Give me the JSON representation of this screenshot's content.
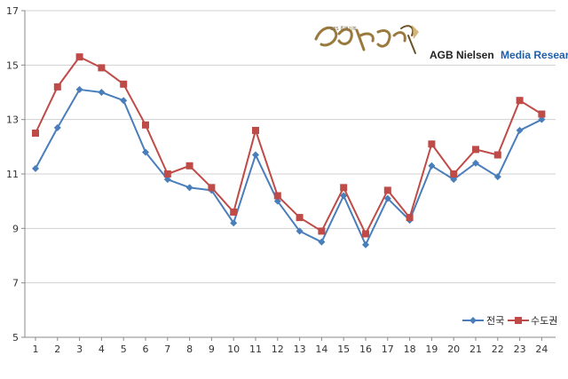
{
  "chart_data": {
    "type": "line",
    "title": "",
    "xlabel": "",
    "ylabel": "",
    "categories": [
      "1",
      "2",
      "3",
      "4",
      "5",
      "6",
      "7",
      "8",
      "9",
      "10",
      "11",
      "12",
      "13",
      "14",
      "15",
      "16",
      "17",
      "18",
      "19",
      "20",
      "21",
      "22",
      "23",
      "24"
    ],
    "ylim": [
      5,
      17
    ],
    "yticks": [
      5,
      7,
      9,
      11,
      13,
      15,
      17
    ],
    "grid": "horizontal",
    "legend_position": "bottom-right",
    "series": [
      {
        "name": "전국",
        "marker": "diamond",
        "color": "#4a7ebb",
        "values": [
          11.2,
          12.7,
          14.1,
          14.0,
          13.7,
          11.8,
          10.8,
          10.5,
          10.4,
          9.2,
          11.7,
          10.0,
          8.9,
          8.5,
          10.2,
          8.4,
          10.1,
          9.3,
          11.3,
          10.8,
          11.4,
          10.9,
          12.6,
          13.0
        ]
      },
      {
        "name": "수도권",
        "marker": "square",
        "color": "#be4b48",
        "values": [
          12.5,
          14.2,
          15.3,
          14.9,
          14.3,
          12.8,
          11.0,
          11.3,
          10.5,
          9.6,
          12.6,
          10.2,
          9.4,
          8.9,
          10.5,
          8.8,
          10.4,
          9.4,
          12.1,
          11.0,
          11.9,
          11.7,
          13.7,
          13.2
        ]
      }
    ]
  },
  "logo": {
    "brand_black": "AGB Nielsen",
    "brand_blue": "Media Research",
    "program_title_graphic": "아테나 전쟁의 여신",
    "colors": {
      "brand_black": "#222222",
      "brand_blue": "#1f5fa8",
      "program_gold": "#9a7a3c"
    }
  }
}
